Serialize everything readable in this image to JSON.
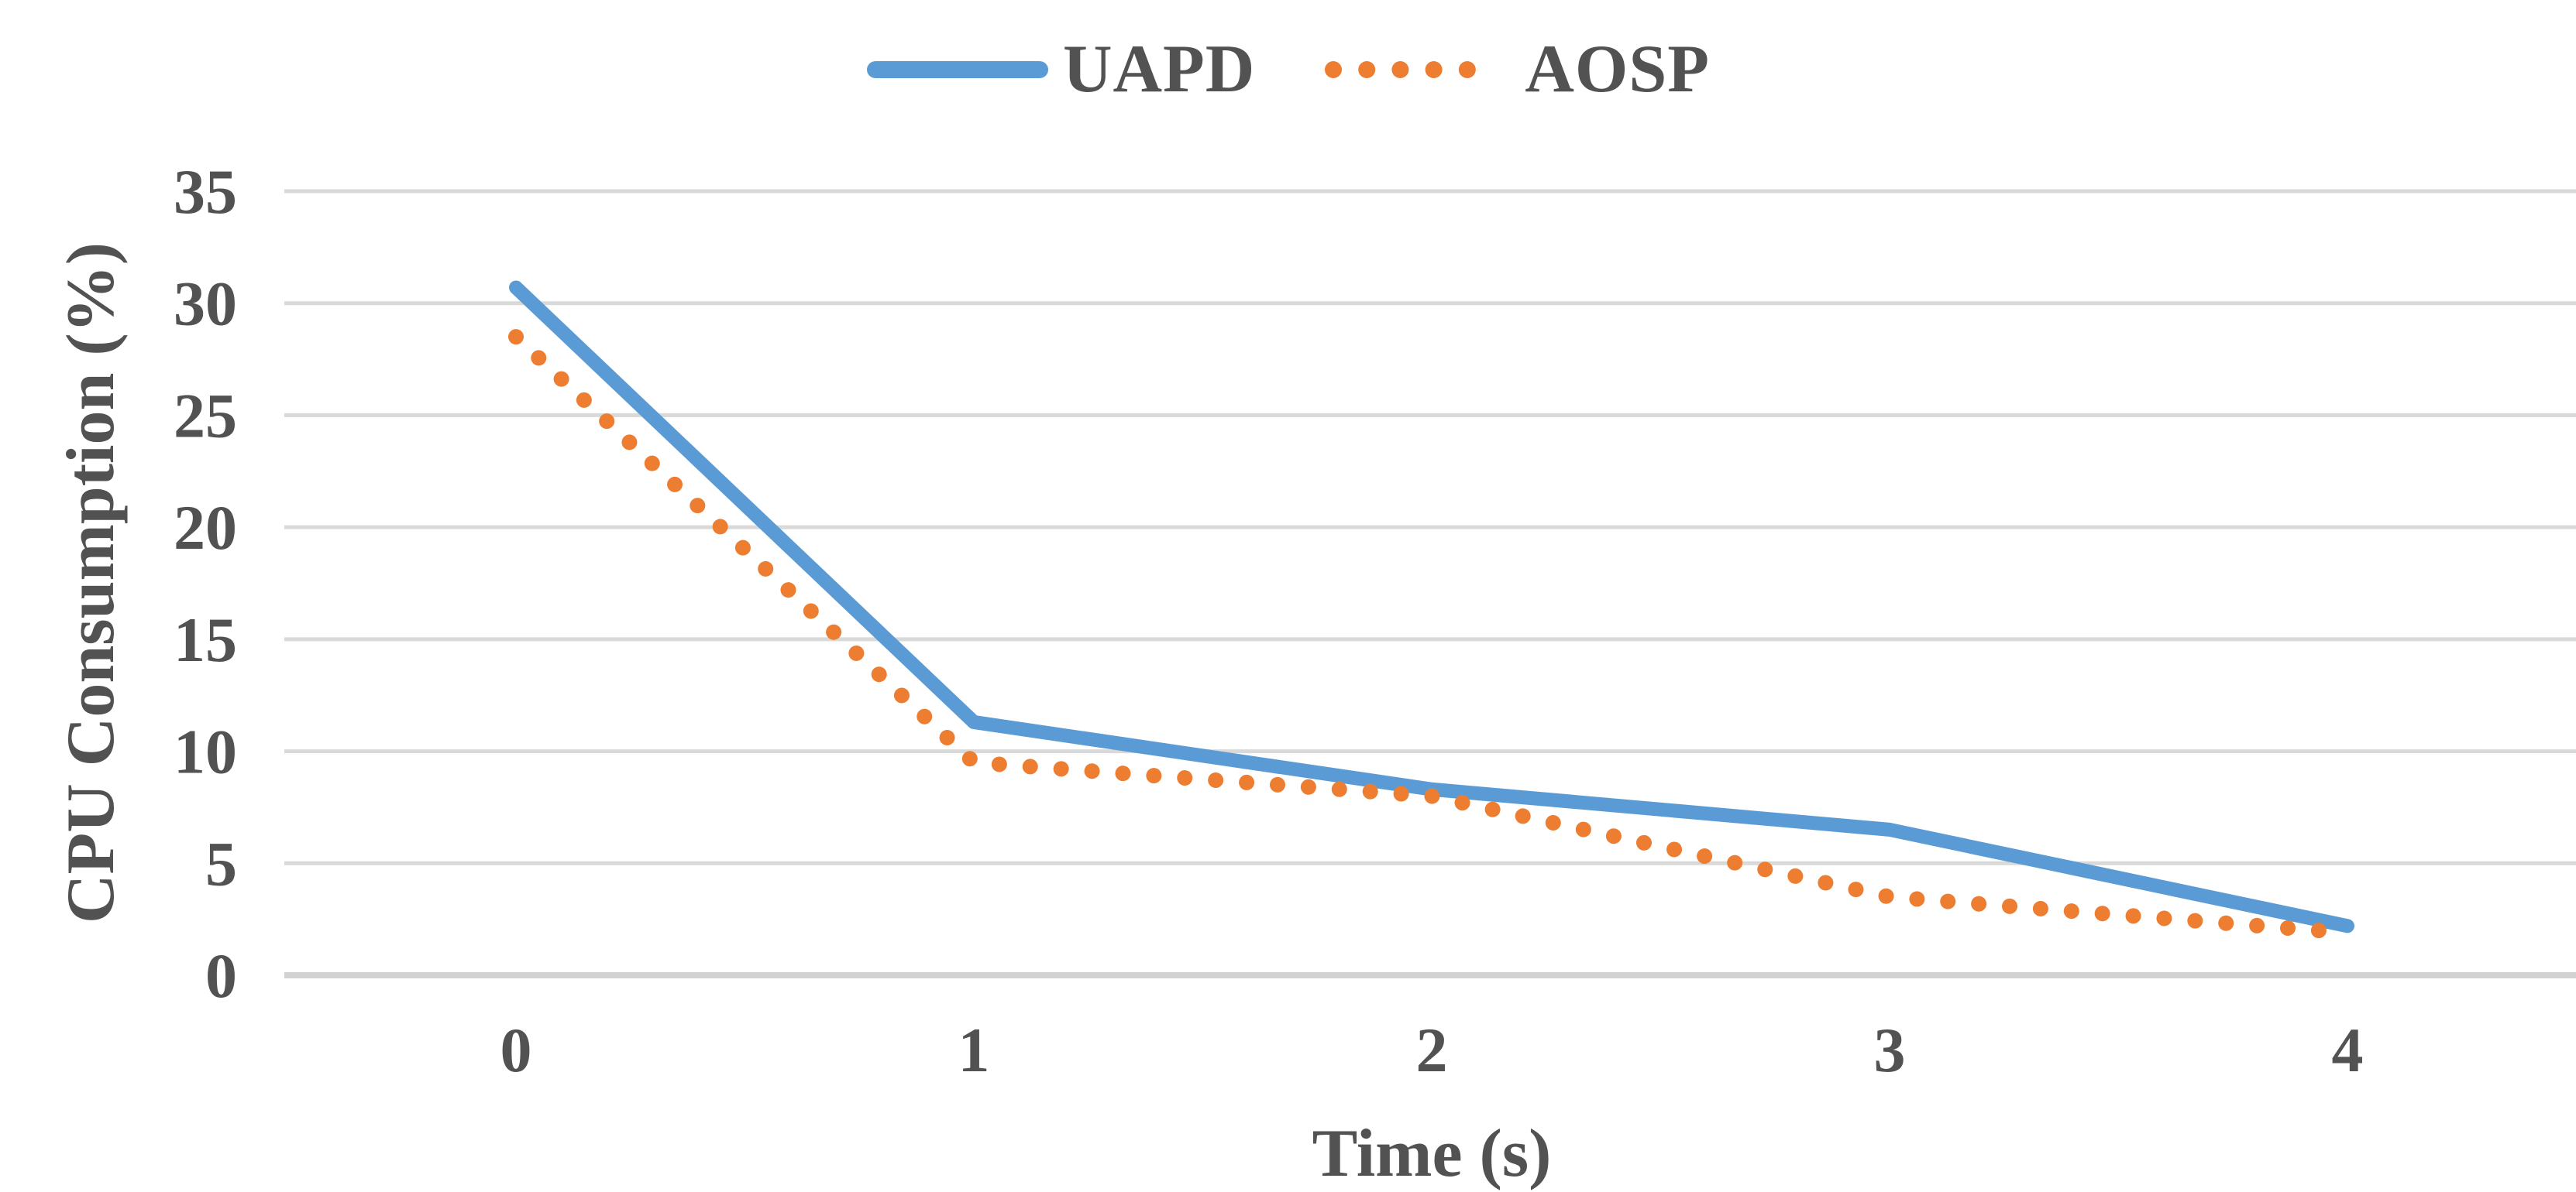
{
  "chart_data": {
    "type": "line",
    "title": "",
    "xlabel": "Time (s)",
    "ylabel": "CPU Consumption (%)",
    "x": [
      0,
      1,
      2,
      3,
      4
    ],
    "x_tick_labels": [
      "0",
      "1",
      "2",
      "3",
      "4"
    ],
    "y_ticks": [
      0,
      5,
      10,
      15,
      20,
      25,
      30,
      35
    ],
    "y_tick_labels": [
      "0",
      "5",
      "10",
      "15",
      "20",
      "25",
      "30",
      "35"
    ],
    "ylim": [
      0,
      35
    ],
    "grid": "horizontal",
    "legend_position": "top-center",
    "series": [
      {
        "name": "UAPD",
        "line_style": "solid",
        "color": "#5B9BD5",
        "values": [
          30.7,
          11.3,
          8.3,
          6.5,
          2.2
        ]
      },
      {
        "name": "AOSP",
        "line_style": "dotted",
        "color": "#ED7D31",
        "values": [
          28.5,
          9.5,
          8.0,
          3.5,
          1.9
        ]
      }
    ]
  },
  "styles": {
    "gridline_color": "#D9D9D9",
    "baseline_color": "#D2D2D2",
    "text_color": "#525252",
    "background_color": "#FFFFFF"
  }
}
